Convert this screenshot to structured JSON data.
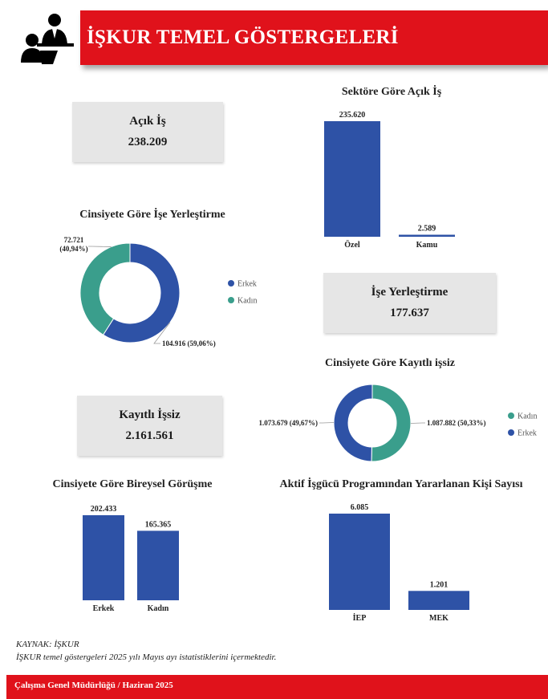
{
  "header": {
    "title": "İŞKUR TEMEL GÖSTERGELERİ",
    "icon": "people-icon"
  },
  "kpis": {
    "acik_is": {
      "label": "Açık İş",
      "value": "238.209"
    },
    "ise_yerlestirme": {
      "label": "İşe Yerleştirme",
      "value": "177.637"
    },
    "kayitli_issiz": {
      "label": "Kayıtlı İşsiz",
      "value": "2.161.561"
    }
  },
  "chart_data": [
    {
      "type": "bar",
      "title": "Sektöre Göre Açık İş",
      "categories": [
        "Özel",
        "Kamu"
      ],
      "values": [
        235620,
        2589
      ],
      "labels": [
        "235.620",
        "2.589"
      ],
      "color": "#2e52a6"
    },
    {
      "type": "pie",
      "title": "Cinsiyete Göre İşe Yerleştirme",
      "slices": [
        {
          "name": "Erkek",
          "value": 104916,
          "label": "104.916 (59,06%)",
          "color": "#2e52a6"
        },
        {
          "name": "Kadın",
          "value": 72721,
          "label": "72.721 (40,94%)",
          "color": "#3a9e8c"
        }
      ],
      "legend": "right"
    },
    {
      "type": "pie",
      "title": "Cinsiyete Göre Kayıtlı işsiz",
      "slices": [
        {
          "name": "Kadın",
          "value": 1087882,
          "label": "1.087.882 (50,33%)",
          "color": "#3a9e8c"
        },
        {
          "name": "Erkek",
          "value": 1073679,
          "label": "1.073.679 (49,67%)",
          "color": "#2e52a6"
        }
      ],
      "legend": "right"
    },
    {
      "type": "bar",
      "title": "Cinsiyete Göre Bireysel Görüşme",
      "categories": [
        "Erkek",
        "Kadın"
      ],
      "values": [
        202433,
        165365
      ],
      "labels": [
        "202.433",
        "165.365"
      ],
      "color": "#2e52a6"
    },
    {
      "type": "bar",
      "title": "Aktif İşgücü Programından Yararlanan Kişi Sayısı",
      "categories": [
        "İEP",
        "MEK"
      ],
      "values": [
        6085,
        1201
      ],
      "labels": [
        "6.085",
        "1.201"
      ],
      "color": "#2e52a6"
    }
  ],
  "source": {
    "line1": "KAYNAK: İŞKUR",
    "line2": "İŞKUR temel göstergeleri 2025 yılı Mayıs ayı istatistiklerini içermektedir."
  },
  "footer": {
    "text": "Çalışma Genel Müdürlüğü / Haziran 2025"
  }
}
